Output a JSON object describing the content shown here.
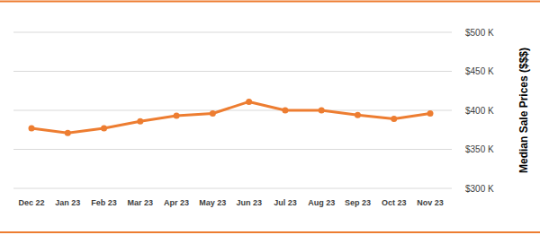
{
  "chart_data": {
    "type": "line",
    "categories": [
      "Dec 22",
      "Jan 23",
      "Feb 23",
      "Mar 23",
      "Apr 23",
      "May 23",
      "Jun 23",
      "Jul 23",
      "Aug 23",
      "Sep 23",
      "Oct 23",
      "Nov 23"
    ],
    "values": [
      377,
      371,
      377,
      386,
      393,
      396,
      411,
      400,
      400,
      394,
      389,
      396
    ],
    "color": "#ed7d31",
    "marker": "circle",
    "y_label": "Median Sale Prices ($$$)",
    "ylim": [
      300,
      500
    ],
    "yticks": [
      {
        "value": 300,
        "label": "$300 K"
      },
      {
        "value": 350,
        "label": "$350 K"
      },
      {
        "value": 400,
        "label": "$400 K"
      },
      {
        "value": 450,
        "label": "$450 K"
      },
      {
        "value": 500,
        "label": "$500 K"
      }
    ],
    "grid": true
  }
}
